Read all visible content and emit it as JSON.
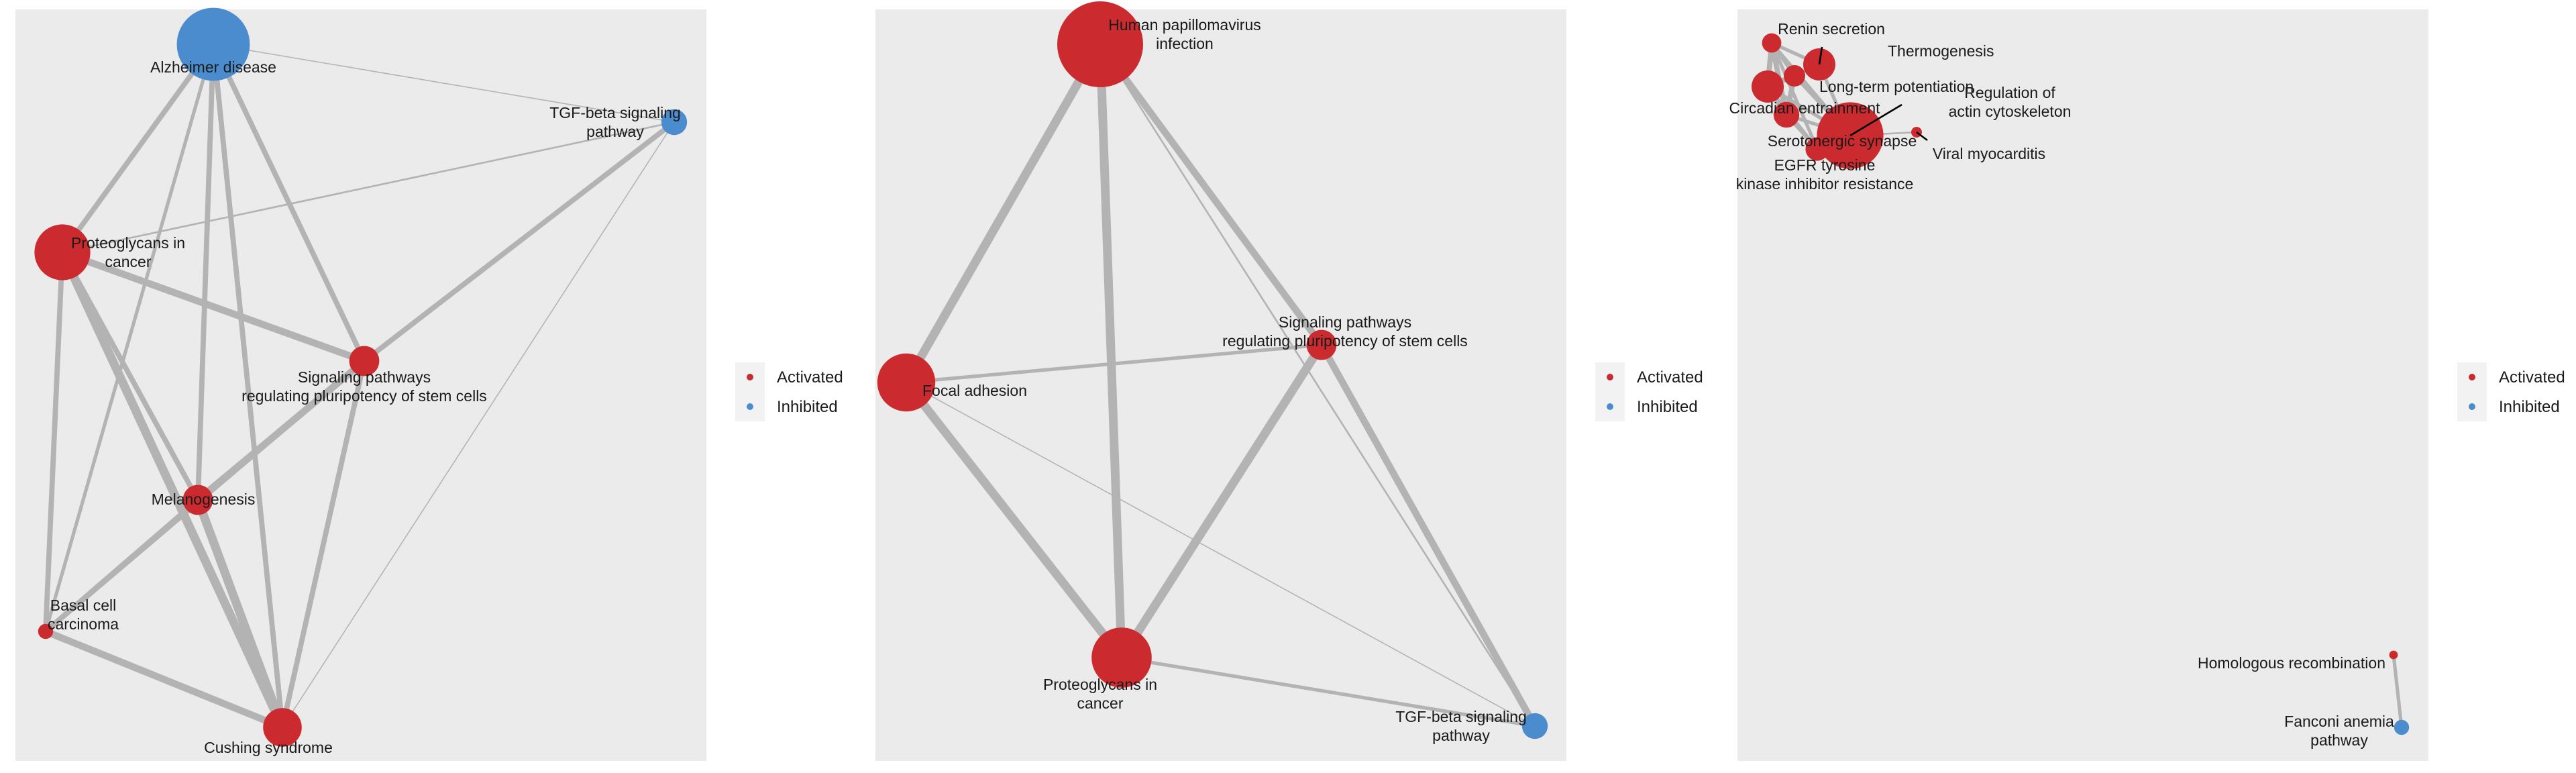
{
  "colors": {
    "activated": "#cb2b2f",
    "inhibited": "#4a8ccd"
  },
  "panels": [
    {
      "nodes": [
        {
          "id": "alz",
          "label": [
            "Alzheimer disease"
          ],
          "state": "inhibited",
          "size": 3.4
        },
        {
          "id": "tgf",
          "label": [
            "TGF-beta signaling",
            "pathway"
          ],
          "state": "inhibited",
          "size": 1.2
        },
        {
          "id": "prot",
          "label": [
            "Proteoglycans in",
            "cancer"
          ],
          "state": "activated",
          "size": 2.6
        },
        {
          "id": "sig",
          "label": [
            "Signaling pathways",
            "regulating pluripotency of stem cells"
          ],
          "state": "activated",
          "size": 1.4
        },
        {
          "id": "mel",
          "label": [
            "Melanogenesis"
          ],
          "state": "activated",
          "size": 1.4
        },
        {
          "id": "bcc",
          "label": [
            "Basal cell",
            "carcinoma"
          ],
          "state": "activated",
          "size": 0.7
        },
        {
          "id": "cush",
          "label": [
            "Cushing syndrome"
          ],
          "state": "activated",
          "size": 1.8
        }
      ],
      "edges": [
        {
          "source": "alz",
          "target": "prot",
          "weight": 3
        },
        {
          "source": "alz",
          "target": "mel",
          "weight": 3
        },
        {
          "source": "alz",
          "target": "cush",
          "weight": 3
        },
        {
          "source": "alz",
          "target": "sig",
          "weight": 3
        },
        {
          "source": "alz",
          "target": "bcc",
          "weight": 2
        },
        {
          "source": "alz",
          "target": "tgf",
          "weight": 0.6
        },
        {
          "source": "prot",
          "target": "sig",
          "weight": 4
        },
        {
          "source": "prot",
          "target": "mel",
          "weight": 3
        },
        {
          "source": "prot",
          "target": "cush",
          "weight": 5
        },
        {
          "source": "prot",
          "target": "bcc",
          "weight": 3
        },
        {
          "source": "prot",
          "target": "tgf",
          "weight": 1
        },
        {
          "source": "sig",
          "target": "tgf",
          "weight": 3
        },
        {
          "source": "sig",
          "target": "mel",
          "weight": 4
        },
        {
          "source": "sig",
          "target": "bcc",
          "weight": 3
        },
        {
          "source": "sig",
          "target": "cush",
          "weight": 3
        },
        {
          "source": "mel",
          "target": "cush",
          "weight": 5
        },
        {
          "source": "mel",
          "target": "bcc",
          "weight": 3
        },
        {
          "source": "bcc",
          "target": "cush",
          "weight": 4
        },
        {
          "source": "tgf",
          "target": "cush",
          "weight": 0.6
        }
      ]
    },
    {
      "nodes": [
        {
          "id": "hpv",
          "label": [
            "Human papillomavirus",
            "infection"
          ],
          "state": "activated",
          "size": 4
        },
        {
          "id": "focal",
          "label": [
            "Focal adhesion"
          ],
          "state": "activated",
          "size": 2.7
        },
        {
          "id": "sig",
          "label": [
            "Signaling pathways",
            "regulating pluripotency of stem cells"
          ],
          "state": "activated",
          "size": 1.4
        },
        {
          "id": "prot",
          "label": [
            "Proteoglycans in",
            "cancer"
          ],
          "state": "activated",
          "size": 2.8
        },
        {
          "id": "tgf",
          "label": [
            "TGF-beta signaling",
            "pathway"
          ],
          "state": "inhibited",
          "size": 1.2
        }
      ],
      "edges": [
        {
          "source": "hpv",
          "target": "focal",
          "weight": 5
        },
        {
          "source": "hpv",
          "target": "prot",
          "weight": 5
        },
        {
          "source": "hpv",
          "target": "sig",
          "weight": 4
        },
        {
          "source": "hpv",
          "target": "tgf",
          "weight": 1
        },
        {
          "source": "focal",
          "target": "sig",
          "weight": 2
        },
        {
          "source": "focal",
          "target": "prot",
          "weight": 5
        },
        {
          "source": "focal",
          "target": "tgf",
          "weight": 0.6
        },
        {
          "source": "sig",
          "target": "prot",
          "weight": 5
        },
        {
          "source": "sig",
          "target": "tgf",
          "weight": 4
        },
        {
          "source": "prot",
          "target": "tgf",
          "weight": 2
        }
      ]
    },
    {
      "nodes": [
        {
          "id": "renin",
          "label": [
            "Renin secretion"
          ],
          "state": "activated",
          "size": 0.9
        },
        {
          "id": "thermo",
          "label": [
            "Thermogenesis"
          ],
          "state": "activated",
          "size": 1.5
        },
        {
          "id": "ltp",
          "label": [
            "Long-term potentiation"
          ],
          "state": "activated",
          "size": 1
        },
        {
          "id": "circ",
          "label": [
            "Circadian entrainment"
          ],
          "state": "activated",
          "size": 1.5
        },
        {
          "id": "regact",
          "label": [
            "Regulation of",
            "actin cytoskeleton"
          ],
          "state": "activated",
          "size": 3.1
        },
        {
          "id": "sero",
          "label": [
            "Serotonergic synapse"
          ],
          "state": "activated",
          "size": 1.2
        },
        {
          "id": "viral",
          "label": [
            "Viral myocarditis"
          ],
          "state": "activated",
          "size": 0.5
        },
        {
          "id": "egfr",
          "label": [
            "EGFR tyrosine",
            "kinase inhibitor resistance"
          ],
          "state": "activated",
          "size": 1.1
        },
        {
          "id": "homo",
          "label": [
            "Homologous recombination"
          ],
          "state": "activated",
          "size": 0.4
        },
        {
          "id": "fanconi",
          "label": [
            "Fanconi anemia",
            "pathway"
          ],
          "state": "inhibited",
          "size": 0.7
        }
      ],
      "edges": [
        {
          "source": "renin",
          "target": "circ",
          "weight": 3
        },
        {
          "source": "renin",
          "target": "ltp",
          "weight": 2
        },
        {
          "source": "renin",
          "target": "thermo",
          "weight": 2
        },
        {
          "source": "renin",
          "target": "sero",
          "weight": 3
        },
        {
          "source": "renin",
          "target": "egfr",
          "weight": 2
        },
        {
          "source": "renin",
          "target": "regact",
          "weight": 2
        },
        {
          "source": "circ",
          "target": "ltp",
          "weight": 3
        },
        {
          "source": "circ",
          "target": "sero",
          "weight": 3
        },
        {
          "source": "circ",
          "target": "thermo",
          "weight": 2
        },
        {
          "source": "circ",
          "target": "egfr",
          "weight": 2
        },
        {
          "source": "circ",
          "target": "regact",
          "weight": 2
        },
        {
          "source": "ltp",
          "target": "thermo",
          "weight": 2
        },
        {
          "source": "ltp",
          "target": "sero",
          "weight": 3
        },
        {
          "source": "ltp",
          "target": "regact",
          "weight": 2
        },
        {
          "source": "thermo",
          "target": "regact",
          "weight": 2
        },
        {
          "source": "sero",
          "target": "regact",
          "weight": 2
        },
        {
          "source": "sero",
          "target": "egfr",
          "weight": 2
        },
        {
          "source": "egfr",
          "target": "regact",
          "weight": 3
        },
        {
          "source": "regact",
          "target": "viral",
          "weight": 1
        },
        {
          "source": "homo",
          "target": "fanconi",
          "weight": 2
        }
      ]
    }
  ],
  "legend": [
    {
      "label": "Activated",
      "state": "activated"
    },
    {
      "label": "Inhibited",
      "state": "inhibited"
    }
  ]
}
